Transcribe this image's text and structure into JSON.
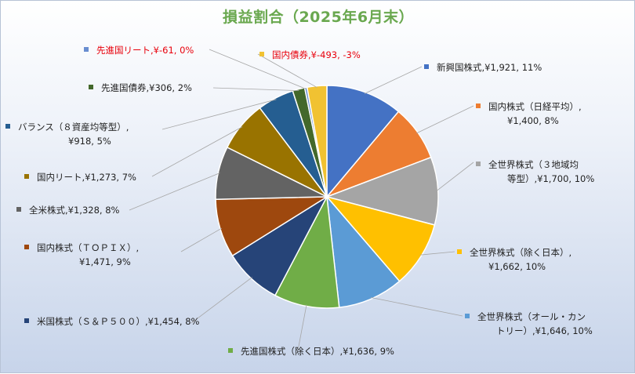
{
  "chart_data": {
    "type": "pie",
    "title": "損益割合（2025年6月末）",
    "slices": [
      {
        "name": "新興国株式",
        "value": 1921,
        "value_label": "¥1,921",
        "pct_label": "11%",
        "color": "#4472c4",
        "negative": false
      },
      {
        "name": "国内株式（日経平均）",
        "value": 1400,
        "value_label": "¥1,400",
        "pct_label": "8%",
        "color": "#ed7d31",
        "negative": false
      },
      {
        "name": "全世界株式（３地域均等型）",
        "value": 1700,
        "value_label": "¥1,700",
        "pct_label": "10%",
        "color": "#a5a5a5",
        "negative": false
      },
      {
        "name": "全世界株式（除く日本）",
        "value": 1662,
        "value_label": "¥1,662",
        "pct_label": "10%",
        "color": "#ffc000",
        "negative": false
      },
      {
        "name": "全世界株式（オール・カントリー）",
        "value": 1646,
        "value_label": "¥1,646",
        "pct_label": "10%",
        "color": "#5b9bd5",
        "negative": false
      },
      {
        "name": "先進国株式（除く日本）",
        "value": 1636,
        "value_label": "¥1,636",
        "pct_label": "9%",
        "color": "#70ad47",
        "negative": false
      },
      {
        "name": "米国株式（Ｓ＆Ｐ５００）",
        "value": 1454,
        "value_label": "¥1,454",
        "pct_label": "8%",
        "color": "#264478",
        "negative": false
      },
      {
        "name": "国内株式（ＴＯＰＩＸ）",
        "value": 1471,
        "value_label": "¥1,471",
        "pct_label": "9%",
        "color": "#9e480e",
        "negative": false
      },
      {
        "name": "全米株式",
        "value": 1328,
        "value_label": "¥1,328",
        "pct_label": "8%",
        "color": "#636363",
        "negative": false
      },
      {
        "name": "国内リート",
        "value": 1273,
        "value_label": "¥1,273",
        "pct_label": "7%",
        "color": "#997300",
        "negative": false
      },
      {
        "name": "バランス（８資産均等型）",
        "value": 918,
        "value_label": "¥918",
        "pct_label": "5%",
        "color": "#255e91",
        "negative": false
      },
      {
        "name": "先進国債券",
        "value": 306,
        "value_label": "¥306",
        "pct_label": "2%",
        "color": "#43682b",
        "negative": false
      },
      {
        "name": "先進国リート",
        "value": -61,
        "value_label": "¥-61",
        "pct_label": "0%",
        "color": "#698ed0",
        "negative": true
      },
      {
        "name": "国内債券",
        "value": -493,
        "value_label": "¥-493",
        "pct_label": "-3%",
        "color": "#f1c232",
        "negative": true
      }
    ],
    "legend": "none"
  },
  "labels": [
    {
      "line1": "新興国株式,¥1,921, 11%",
      "line2": ""
    },
    {
      "line1": "国内株式（日経平均）,",
      "line2": "¥1,400, 8%"
    },
    {
      "line1": "全世界株式（３地域均",
      "line2": "等型）,¥1,700, 10%"
    },
    {
      "line1": "全世界株式（除く日本）,",
      "line2": "¥1,662, 10%"
    },
    {
      "line1": "全世界株式（オール・カン",
      "line2": "トリー）,¥1,646, 10%"
    },
    {
      "line1": "先進国株式（除く日本）,¥1,636, 9%",
      "line2": ""
    },
    {
      "line1": "米国株式（Ｓ＆Ｐ５００）,¥1,454, 8%",
      "line2": ""
    },
    {
      "line1": "国内株式（ＴＯＰＩＸ）,",
      "line2": "¥1,471, 9%"
    },
    {
      "line1": "全米株式,¥1,328, 8%",
      "line2": ""
    },
    {
      "line1": "国内リート,¥1,273, 7%",
      "line2": ""
    },
    {
      "line1": "バランス（８資産均等型）,",
      "line2": "¥918, 5%"
    },
    {
      "line1": "先進国債券,¥306, 2%",
      "line2": ""
    },
    {
      "line1": "先進国リート,¥-61, 0%",
      "line2": ""
    },
    {
      "line1": "国内債券,¥-493, -3%",
      "line2": ""
    }
  ]
}
